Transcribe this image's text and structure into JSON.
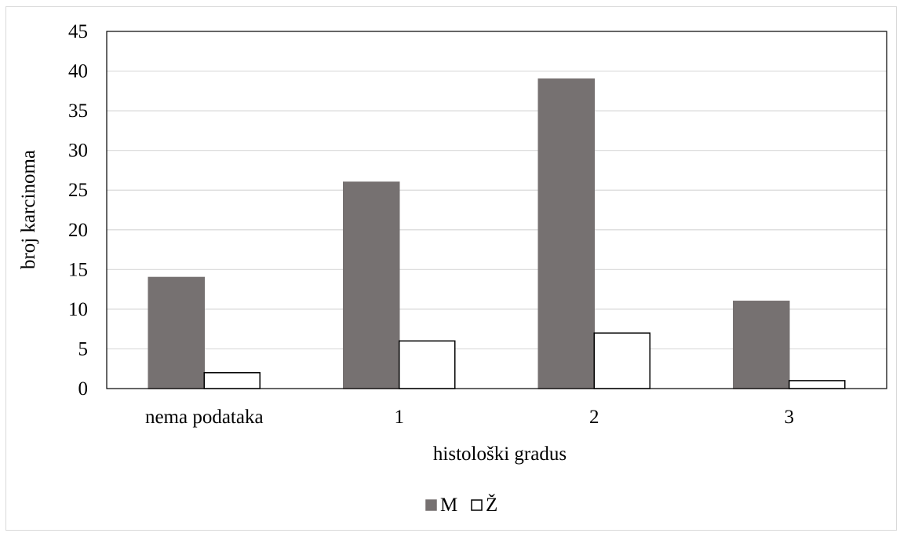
{
  "chart_data": {
    "type": "bar",
    "categories": [
      "nema podataka",
      "1",
      "2",
      "3"
    ],
    "series": [
      {
        "name": "M",
        "values": [
          14,
          26,
          39,
          11
        ],
        "color": "#767171",
        "stroke": "#767171"
      },
      {
        "name": "Ž",
        "values": [
          2,
          6,
          7,
          1
        ],
        "color": "#ffffff",
        "stroke": "#000000"
      }
    ],
    "xlabel": "histološki gradus",
    "ylabel": "broj karcinoma",
    "ylim": [
      0,
      45
    ],
    "yticks": [
      0,
      5,
      10,
      15,
      20,
      25,
      30,
      35,
      40,
      45
    ],
    "grid": true,
    "legend": "bottom"
  }
}
